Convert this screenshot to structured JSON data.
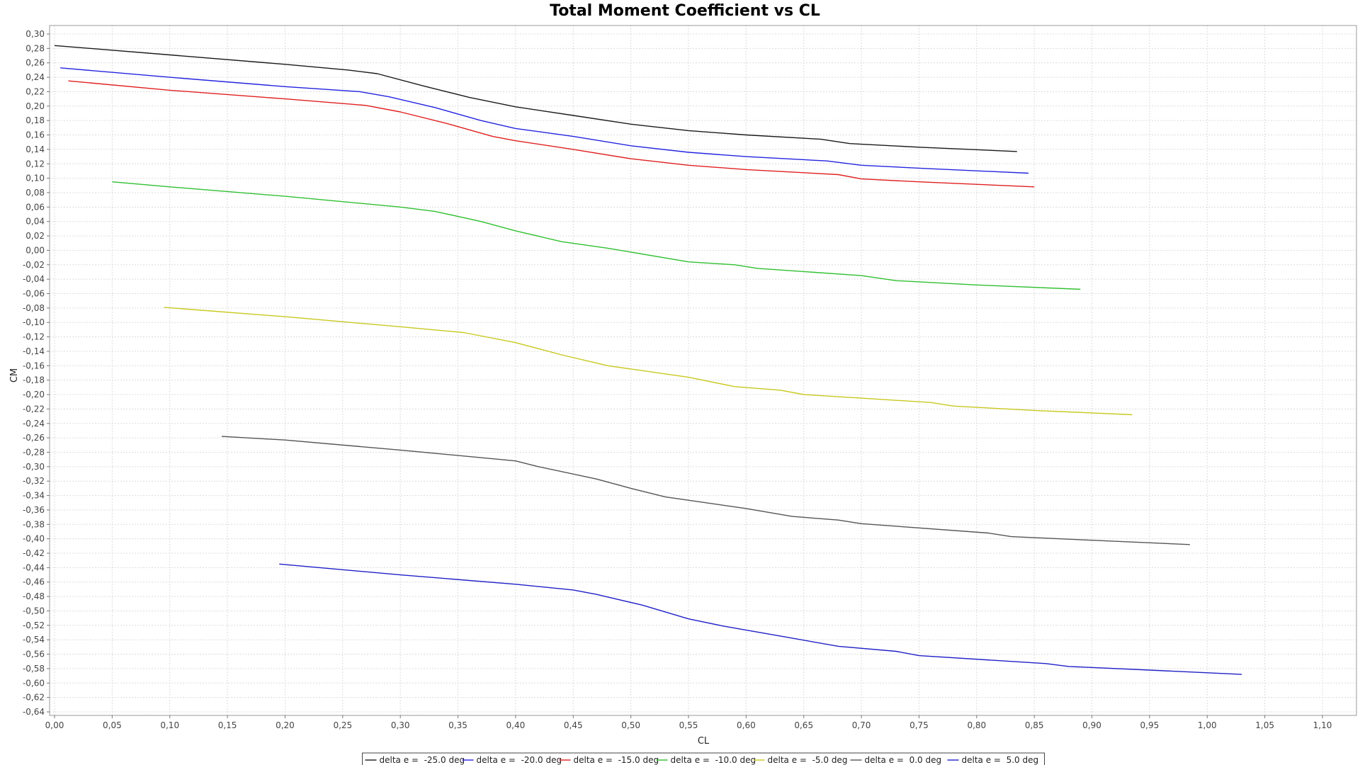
{
  "chart_data": {
    "type": "line",
    "title": "Total Moment Coefficient vs CL",
    "xlabel": "CL",
    "ylabel": "CM",
    "xlim": [
      0.0,
      1.13
    ],
    "ylim": [
      -0.65,
      0.31
    ],
    "xticks": [
      "0,00",
      "0,05",
      "0,10",
      "0,15",
      "0,20",
      "0,25",
      "0,30",
      "0,35",
      "0,40",
      "0,45",
      "0,50",
      "0,55",
      "0,60",
      "0,65",
      "0,70",
      "0,75",
      "0,80",
      "0,85",
      "0,90",
      "0,95",
      "1,00",
      "1,05",
      "1,10"
    ],
    "xtick_values": [
      0.0,
      0.05,
      0.1,
      0.15,
      0.2,
      0.25,
      0.3,
      0.35,
      0.4,
      0.45,
      0.5,
      0.55,
      0.6,
      0.65,
      0.7,
      0.75,
      0.8,
      0.85,
      0.9,
      0.95,
      1.0,
      1.05,
      1.1
    ],
    "yticks": [
      "0,30",
      "0,28",
      "0,26",
      "0,24",
      "0,22",
      "0,20",
      "0,18",
      "0,16",
      "0,14",
      "0,12",
      "0,10",
      "0,08",
      "0,06",
      "0,04",
      "0,02",
      "0,00",
      "-0,02",
      "-0,04",
      "-0,06",
      "-0,08",
      "-0,10",
      "-0,12",
      "-0,14",
      "-0,16",
      "-0,18",
      "-0,20",
      "-0,22",
      "-0,24",
      "-0,26",
      "-0,28",
      "-0,30",
      "-0,32",
      "-0,34",
      "-0,36",
      "-0,38",
      "-0,40",
      "-0,42",
      "-0,44",
      "-0,46",
      "-0,48",
      "-0,50",
      "-0,52",
      "-0,54",
      "-0,56",
      "-0,58",
      "-0,60",
      "-0,62",
      "-0,64"
    ],
    "ytick_values": [
      0.3,
      0.28,
      0.26,
      0.24,
      0.22,
      0.2,
      0.18,
      0.16,
      0.14,
      0.12,
      0.1,
      0.08,
      0.06,
      0.04,
      0.02,
      0.0,
      -0.02,
      -0.04,
      -0.06,
      -0.08,
      -0.1,
      -0.12,
      -0.14,
      -0.16,
      -0.18,
      -0.2,
      -0.22,
      -0.24,
      -0.26,
      -0.28,
      -0.3,
      -0.32,
      -0.34,
      -0.36,
      -0.38,
      -0.4,
      -0.42,
      -0.44,
      -0.46,
      -0.48,
      -0.5,
      -0.52,
      -0.54,
      -0.56,
      -0.58,
      -0.6,
      -0.62,
      -0.64
    ],
    "grid": true,
    "legend_position": "bottom-center",
    "series": [
      {
        "name": "delta e =  -25.0 deg",
        "color": "#1a1a1a",
        "x": [
          0.0,
          0.1,
          0.2,
          0.255,
          0.28,
          0.32,
          0.36,
          0.4,
          0.45,
          0.5,
          0.55,
          0.6,
          0.665,
          0.69,
          0.75,
          0.835
        ],
        "y": [
          0.284,
          0.271,
          0.258,
          0.25,
          0.245,
          0.228,
          0.212,
          0.199,
          0.187,
          0.175,
          0.166,
          0.16,
          0.154,
          0.148,
          0.143,
          0.137
        ]
      },
      {
        "name": "delta e =  -20.0 deg",
        "color": "#2424e0",
        "x": [
          0.005,
          0.1,
          0.2,
          0.265,
          0.29,
          0.33,
          0.37,
          0.4,
          0.45,
          0.5,
          0.55,
          0.6,
          0.67,
          0.7,
          0.75,
          0.845
        ],
        "y": [
          0.253,
          0.24,
          0.227,
          0.22,
          0.213,
          0.198,
          0.18,
          0.169,
          0.158,
          0.145,
          0.136,
          0.13,
          0.124,
          0.118,
          0.114,
          0.107
        ]
      },
      {
        "name": "delta e =  -15.0 deg",
        "color": "#e02020",
        "x": [
          0.012,
          0.1,
          0.2,
          0.27,
          0.3,
          0.34,
          0.38,
          0.4,
          0.45,
          0.5,
          0.55,
          0.6,
          0.68,
          0.7,
          0.75,
          0.85
        ],
        "y": [
          0.235,
          0.222,
          0.21,
          0.201,
          0.192,
          0.176,
          0.158,
          0.152,
          0.14,
          0.127,
          0.118,
          0.112,
          0.105,
          0.099,
          0.095,
          0.088
        ]
      },
      {
        "name": "delta e =  -10.0 deg",
        "color": "#30c030",
        "x": [
          0.05,
          0.1,
          0.2,
          0.3,
          0.33,
          0.37,
          0.4,
          0.44,
          0.48,
          0.55,
          0.59,
          0.61,
          0.7,
          0.73,
          0.8,
          0.89
        ],
        "y": [
          0.095,
          0.088,
          0.075,
          0.06,
          0.054,
          0.04,
          0.027,
          0.012,
          0.003,
          -0.016,
          -0.02,
          -0.025,
          -0.035,
          -0.042,
          -0.048,
          -0.054
        ]
      },
      {
        "name": "delta e =  -5.0 deg",
        "color": "#c8c820",
        "x": [
          0.095,
          0.2,
          0.3,
          0.355,
          0.4,
          0.44,
          0.48,
          0.55,
          0.59,
          0.63,
          0.65,
          0.7,
          0.76,
          0.78,
          0.85,
          0.935
        ],
        "y": [
          -0.079,
          -0.092,
          -0.106,
          -0.114,
          -0.128,
          -0.145,
          -0.16,
          -0.176,
          -0.189,
          -0.194,
          -0.2,
          -0.205,
          -0.211,
          -0.216,
          -0.222,
          -0.228
        ]
      },
      {
        "name": "delta e =  0.0 deg",
        "color": "#555555",
        "x": [
          0.145,
          0.2,
          0.3,
          0.4,
          0.42,
          0.47,
          0.5,
          0.53,
          0.6,
          0.64,
          0.68,
          0.7,
          0.81,
          0.83,
          0.9,
          0.985
        ],
        "y": [
          -0.258,
          -0.263,
          -0.277,
          -0.292,
          -0.3,
          -0.317,
          -0.33,
          -0.342,
          -0.358,
          -0.369,
          -0.374,
          -0.379,
          -0.392,
          -0.397,
          -0.402,
          -0.408
        ]
      },
      {
        "name": "delta e =  5.0 deg",
        "color": "#2020c8",
        "x": [
          0.195,
          0.3,
          0.4,
          0.45,
          0.47,
          0.51,
          0.55,
          0.58,
          0.63,
          0.68,
          0.73,
          0.75,
          0.86,
          0.88,
          0.95,
          1.03
        ],
        "y": [
          -0.435,
          -0.45,
          -0.463,
          -0.471,
          -0.477,
          -0.492,
          -0.511,
          -0.521,
          -0.535,
          -0.549,
          -0.556,
          -0.562,
          -0.573,
          -0.577,
          -0.582,
          -0.588
        ]
      }
    ]
  }
}
